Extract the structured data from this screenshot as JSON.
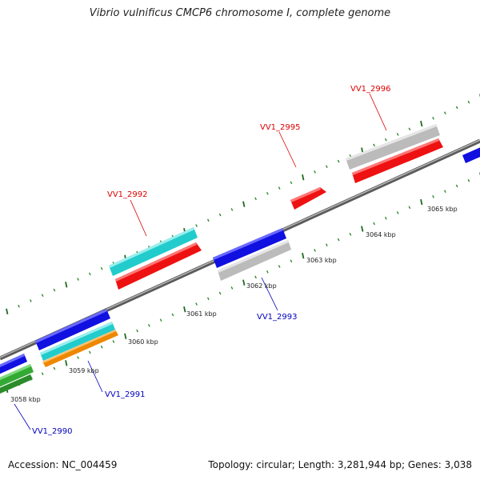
{
  "title": "Vibrio vulnificus CMCP6 chromosome I, complete genome",
  "accession_text": "Accession: NC_004459",
  "summary_text": "Topology: circular; Length: 3,281,944 bp; Genes: 3,038",
  "colors": {
    "backbone": "#7a7a7a",
    "tick_minor": "#2e8b2e",
    "tick_major": "#1f6b1f",
    "label_forward": "#dd0000",
    "label_reverse": "#0000bb",
    "blue": "#1010e0",
    "red": "#ee1111",
    "cyan": "#22cccc",
    "gray": "#bbbbbb",
    "green": "#33aa33",
    "orange": "#ee8800"
  },
  "ruler": {
    "unit": "kbp",
    "ticks": [
      {
        "label": "3058 kbp"
      },
      {
        "label": "3059 kbp"
      },
      {
        "label": "3060 kbp"
      },
      {
        "label": "3061 kbp"
      },
      {
        "label": "3062 kbp"
      },
      {
        "label": "3063 kbp"
      },
      {
        "label": "3064 kbp"
      },
      {
        "label": "3065 kbp"
      }
    ]
  },
  "gene_labels": [
    {
      "name": "VV1_2990",
      "strand": "reverse"
    },
    {
      "name": "VV1_2991",
      "strand": "reverse"
    },
    {
      "name": "VV1_2992",
      "strand": "forward"
    },
    {
      "name": "VV1_2993",
      "strand": "reverse"
    },
    {
      "name": "VV1_2995",
      "strand": "forward"
    },
    {
      "name": "VV1_2996",
      "strand": "forward"
    }
  ]
}
